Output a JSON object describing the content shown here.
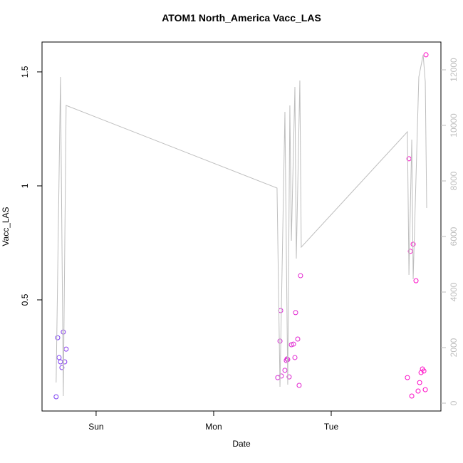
{
  "chart_data": {
    "type": "scatter",
    "title": "ATOM1 North_America Vacc_LAS",
    "x_label": "Date",
    "y_label": "Vacc_LAS",
    "xlim": [
      -0.46,
      2.933
    ],
    "xticks": [
      {
        "value": 0,
        "label": "Sun"
      },
      {
        "value": 1,
        "label": "Mon"
      },
      {
        "value": 2,
        "label": "Tue"
      }
    ],
    "ylim": [
      0.0125,
      1.631
    ],
    "yticks": [
      0.5,
      1.0,
      1.5
    ],
    "y2lim": [
      -282,
      13000
    ],
    "y2ticks": [
      0,
      2000,
      4000,
      6000,
      8000,
      10000,
      12000
    ],
    "series": [
      {
        "type": "scatter",
        "x": [
          -0.34,
          -0.327,
          -0.315,
          -0.303,
          -0.291,
          -0.279,
          -0.267,
          -0.255,
          1.545,
          1.564,
          1.57,
          1.576,
          1.606,
          1.618,
          1.624,
          1.63,
          1.642,
          1.661,
          1.679,
          1.691,
          1.697,
          1.715,
          1.727,
          1.739,
          2.648,
          2.661,
          2.673,
          2.685,
          2.697,
          2.721,
          2.739,
          2.752,
          2.764,
          2.776,
          2.788,
          2.8,
          2.806
        ],
        "values": [
          0.075,
          0.334,
          0.247,
          0.228,
          0.203,
          0.359,
          0.228,
          0.284,
          0.159,
          0.319,
          0.453,
          0.166,
          0.191,
          0.234,
          0.241,
          0.238,
          0.162,
          0.303,
          0.306,
          0.247,
          0.444,
          0.328,
          0.125,
          0.606,
          0.159,
          1.119,
          0.713,
          0.078,
          0.744,
          0.584,
          0.1,
          0.137,
          0.181,
          0.197,
          0.188,
          0.106,
          1.575
        ],
        "colors": [
          "#7b3ff2",
          "#7b3ff2",
          "#7e3ef1",
          "#803ef0",
          "#833df0",
          "#853cef",
          "#883cee",
          "#8a3bee",
          "#d72ad6",
          "#d829d5",
          "#d929d5",
          "#da29d4",
          "#db28d4",
          "#dc28d3",
          "#dc27d3",
          "#dd27d3",
          "#de27d2",
          "#df26d2",
          "#e026d1",
          "#e125d1",
          "#e125d1",
          "#e224d0",
          "#e324d0",
          "#e423cf",
          "#fa10c8",
          "#fa10c8",
          "#fb0fc8",
          "#fb0ec7",
          "#fc0dc7",
          "#fc0cc7",
          "#fd0bc6",
          "#fd0ac6",
          "#fe09c6",
          "#fe08c5",
          "#ff07c5",
          "#ff06c5",
          "#ff05c4"
        ]
      },
      {
        "type": "line",
        "axis": "y2",
        "color": "#bebebe",
        "x": [
          -0.34,
          -0.303,
          -0.279,
          -0.255,
          1.539,
          1.564,
          1.606,
          1.63,
          1.648,
          1.661,
          1.691,
          1.703,
          1.733,
          1.745,
          2.648,
          2.661,
          2.685,
          2.697,
          2.745,
          2.782,
          2.8,
          2.812
        ],
        "values": [
          744,
          11744,
          256,
          10718,
          7744,
          590,
          10487,
          667,
          10718,
          5846,
          11385,
          5205,
          11615,
          5615,
          9769,
          4615,
          9487,
          4462,
          11744,
          12538,
          11564,
          7026
        ]
      }
    ]
  }
}
